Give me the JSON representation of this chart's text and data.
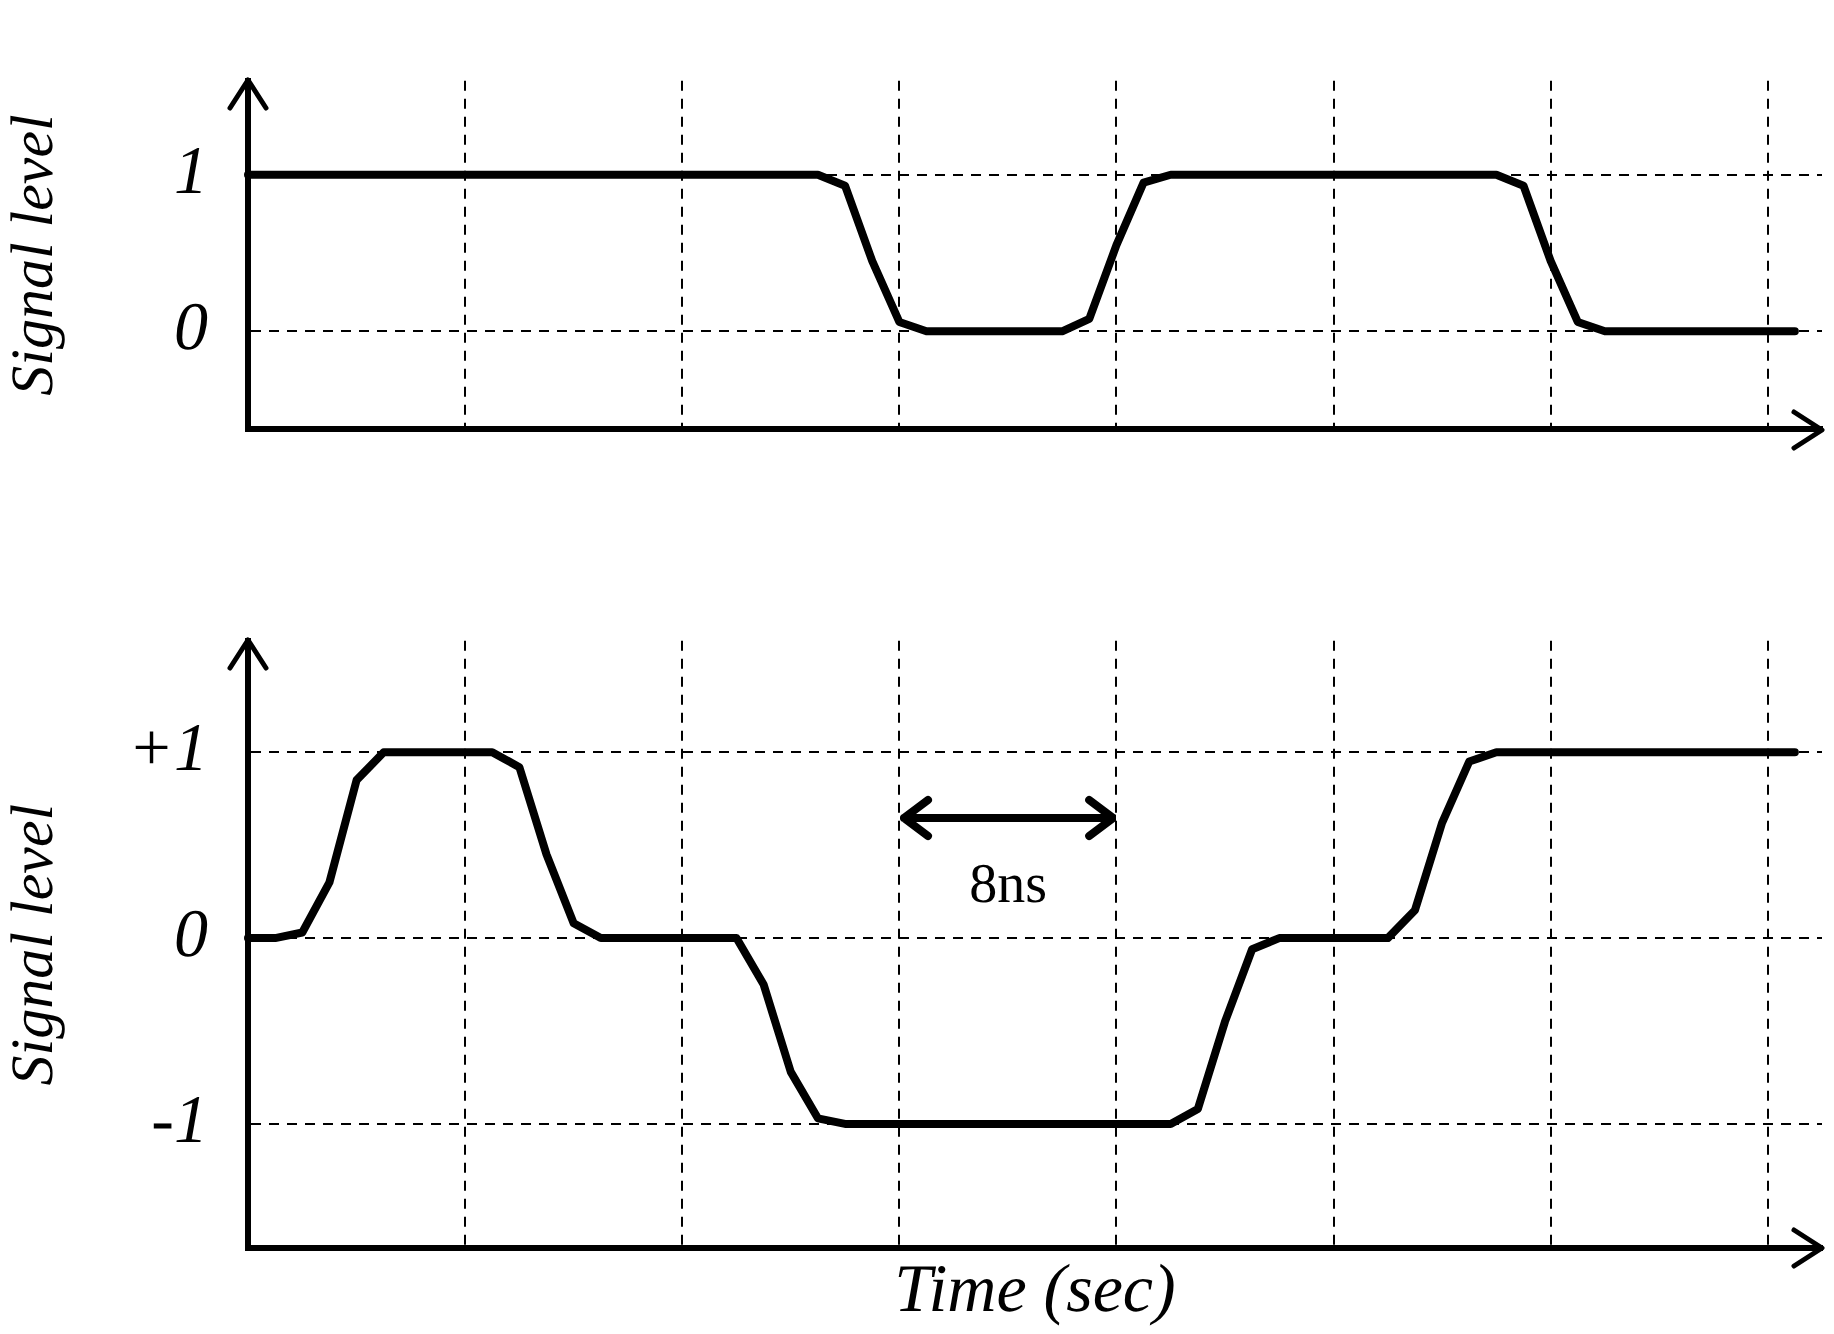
{
  "chart_data": [
    {
      "type": "line",
      "ylabel": "Signal level",
      "categories": [
        null,
        null,
        null,
        null,
        null,
        null,
        null,
        null,
        null,
        null,
        null,
        null,
        null,
        null,
        null,
        null,
        null,
        null,
        null,
        null,
        null,
        null,
        null,
        null,
        null,
        null,
        null,
        null,
        null,
        null,
        null,
        null,
        null,
        null,
        null,
        null,
        null,
        null,
        null,
        null,
        null,
        null,
        null,
        null,
        null,
        null,
        null,
        null,
        null,
        null,
        null,
        null,
        null,
        null,
        null,
        null,
        null,
        null,
        null
      ],
      "ylim": [
        -0.625,
        1.6
      ],
      "yticks": [
        0,
        1
      ],
      "tick_labels": "y",
      "grid": true,
      "legend": false,
      "marker": "none",
      "line_style": "solid",
      "series": [
        {
          "color": "#000000",
          "values": [
            1,
            1,
            1,
            1,
            1,
            1,
            1,
            1,
            1,
            1,
            1,
            1,
            1,
            1,
            1,
            1,
            1,
            1,
            1,
            1,
            1,
            1,
            0.93,
            0.45,
            0.06,
            0,
            0,
            0,
            0,
            0,
            0,
            0.08,
            0.55,
            0.95,
            1,
            1,
            1,
            1,
            1,
            1,
            1,
            1,
            1,
            1,
            1,
            1,
            1,
            0.93,
            0.45,
            0.06,
            0,
            0,
            0,
            0,
            0,
            0,
            0,
            0,
            null
          ]
        }
      ]
    },
    {
      "type": "line",
      "ylabel": "Signal level",
      "xlabel": "Time (sec)",
      "categories": [
        null,
        null,
        null,
        null,
        null,
        null,
        null,
        null,
        null,
        null,
        null,
        null,
        null,
        null,
        null,
        null,
        null,
        null,
        null,
        null,
        null,
        null,
        null,
        null,
        null,
        null,
        null,
        null,
        null,
        null,
        null,
        null,
        null,
        null,
        null,
        null,
        null,
        null,
        null,
        null,
        null,
        null,
        null,
        null,
        null,
        null,
        null,
        null,
        null,
        null,
        null,
        null,
        null,
        null,
        null,
        null,
        null,
        null,
        null
      ],
      "ylim": [
        -1.67,
        1.6
      ],
      "yticks": [
        -1,
        0,
        {
          "value": 1,
          "label": "+1"
        }
      ],
      "tick_labels": "y",
      "grid": true,
      "legend": false,
      "marker": "none",
      "line_style": "solid",
      "annotations": [
        "8ns"
      ],
      "series": [
        {
          "color": "#000000",
          "values": [
            0,
            0,
            0.03,
            0.3,
            0.85,
            1,
            1,
            1,
            1,
            1,
            0.92,
            0.45,
            0.08,
            0,
            0,
            0,
            0,
            0,
            0,
            -0.25,
            -0.72,
            -0.97,
            -1,
            -1,
            -1,
            -1,
            -1,
            -1,
            -1,
            -1,
            -1,
            -1,
            -1,
            -1,
            -1,
            -0.92,
            -0.45,
            -0.06,
            0,
            0,
            0,
            0,
            0,
            0.15,
            0.62,
            0.95,
            1,
            1,
            1,
            1,
            1,
            1,
            1,
            1,
            1,
            1,
            1,
            1,
            null
          ]
        }
      ]
    }
  ]
}
